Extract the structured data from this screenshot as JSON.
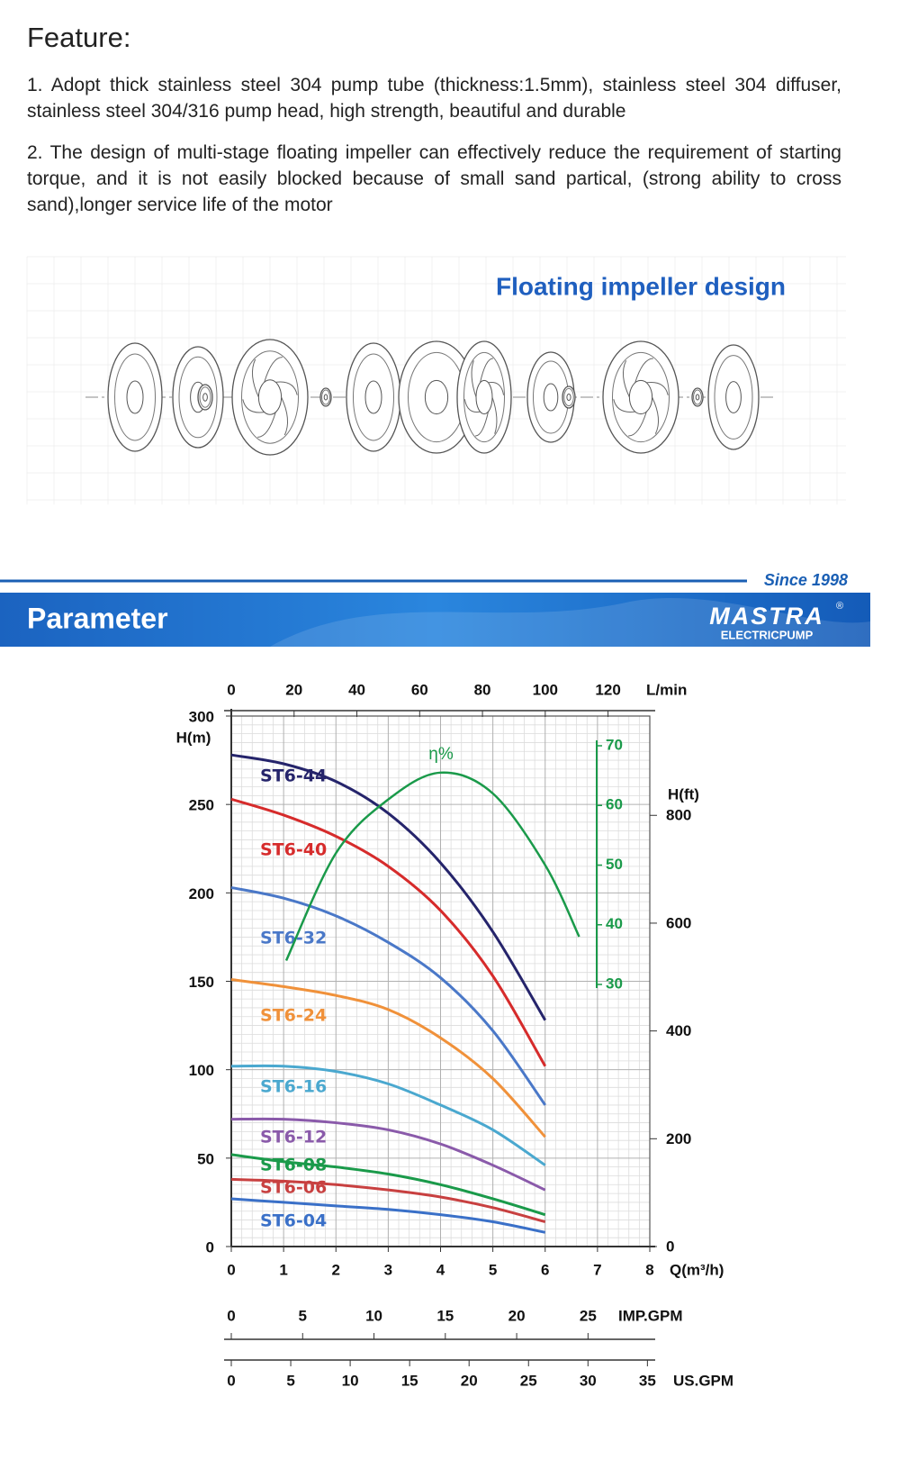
{
  "feature": {
    "title": "Feature:",
    "items": [
      "1. Adopt thick stainless steel 304 pump tube (thickness:1.5mm),  stainless steel 304 diffuser,  stainless steel 304/316 pump head, high strength, beautiful and durable",
      "2. The design of multi-stage floating impeller can effectively reduce the requirement of starting torque,  and it is not easily blocked because of small sand partical, (strong ability to cross sand),longer service life of the motor"
    ]
  },
  "impeller": {
    "caption": "Floating impeller design"
  },
  "parameter": {
    "since": "Since 1998",
    "title": "Parameter",
    "logo": "MASTRA",
    "registered": "®",
    "logo_sub": "ELECTRICPUMP"
  },
  "chart_data": {
    "type": "line",
    "x_title": "Q(m³/h)",
    "y_title": "H(m)",
    "xlim": [
      0,
      8
    ],
    "xticks": [
      0,
      1,
      2,
      3,
      4,
      5,
      6,
      7,
      8
    ],
    "ylim": [
      0,
      300
    ],
    "yticks": [
      0,
      50,
      100,
      150,
      200,
      250,
      300
    ],
    "grid": true,
    "minor_grid": true,
    "lmin_axis": {
      "title": "L/min",
      "lim": [
        0,
        133.3
      ],
      "ticks": [
        0,
        20,
        40,
        60,
        80,
        100,
        120
      ]
    },
    "ft_axis": {
      "title": "H(ft)",
      "lim": [
        0,
        984.25
      ],
      "ticks": [
        0,
        200,
        400,
        600,
        800
      ]
    },
    "imp_axis": {
      "title": "IMP.GPM",
      "lim": [
        0,
        29.33
      ],
      "ticks": [
        0,
        5,
        10,
        15,
        20,
        25
      ]
    },
    "us_axis": {
      "title": "US.GPM",
      "lim": [
        0,
        35.2
      ],
      "ticks": [
        0,
        5,
        10,
        15,
        20,
        25,
        30,
        35
      ]
    },
    "x": [
      0,
      1,
      2,
      3,
      4,
      5,
      6
    ],
    "series": [
      {
        "name": "ST6-44",
        "color": "#25246b",
        "values": [
          278,
          273,
          263,
          245,
          217,
          178,
          128
        ]
      },
      {
        "name": "ST6-40",
        "color": "#d62b2b",
        "values": [
          253,
          244,
          232,
          215,
          190,
          153,
          102
        ]
      },
      {
        "name": "ST6-32",
        "color": "#4a78c8",
        "values": [
          203,
          197,
          187,
          172,
          152,
          122,
          80
        ]
      },
      {
        "name": "ST6-24",
        "color": "#f0913a",
        "values": [
          151,
          147,
          142,
          134,
          118,
          95,
          62
        ]
      },
      {
        "name": "ST6-16",
        "color": "#4aa8cf",
        "values": [
          102,
          102,
          99,
          92,
          80,
          66,
          46
        ]
      },
      {
        "name": "ST6-12",
        "color": "#8a5aaa",
        "values": [
          72,
          72,
          70,
          66,
          58,
          46,
          32
        ]
      },
      {
        "name": "ST6-08",
        "color": "#1a9a4a",
        "values": [
          52,
          48,
          45,
          41,
          35,
          27,
          18
        ]
      },
      {
        "name": "ST6-06",
        "color": "#c84040",
        "values": [
          38,
          37,
          35,
          32,
          28,
          22,
          14
        ]
      },
      {
        "name": "ST6-04",
        "color": "#3a70c8",
        "values": [
          27,
          25,
          23,
          21,
          18,
          14,
          8
        ]
      }
    ],
    "efficiency": {
      "name": "η%",
      "color": "#1a9a4a",
      "lim": [
        30,
        70
      ],
      "ticks": [
        30,
        40,
        50,
        60,
        70
      ],
      "x": [
        1.05,
        2,
        3,
        4,
        5,
        6,
        6.65
      ],
      "values": [
        34,
        52,
        61,
        65.5,
        62,
        50,
        38
      ]
    }
  }
}
